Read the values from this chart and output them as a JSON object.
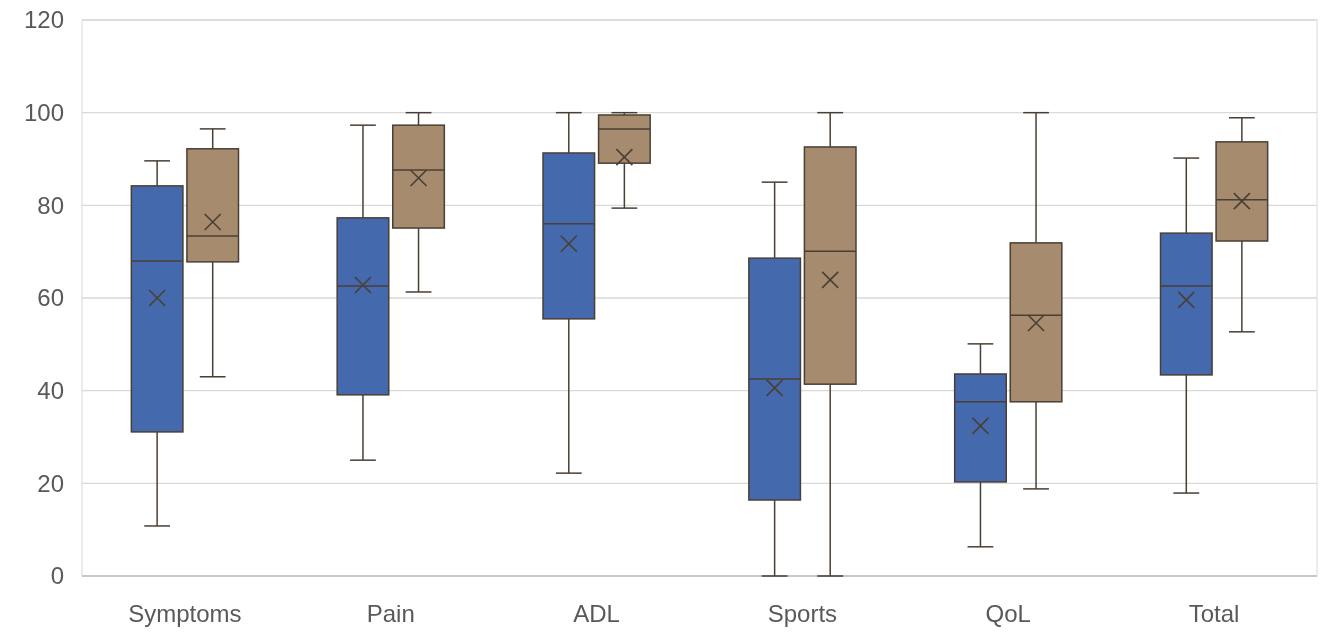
{
  "chart_data": {
    "type": "box",
    "categories": [
      "Symptoms",
      "Pain",
      "ADL",
      "Sports",
      "QoL",
      "Total"
    ],
    "ylim": [
      0,
      120
    ],
    "yticks": [
      0,
      20,
      40,
      60,
      80,
      100,
      120
    ],
    "grid": "y",
    "marker": "cross",
    "series": [
      {
        "color": "#4569ad",
        "boxes": [
          {
            "low": 10.8,
            "q1": 31.1,
            "median": 68,
            "q3": 84.2,
            "high": 89.6,
            "mean": 60
          },
          {
            "low": 25,
            "q1": 39.1,
            "median": 62.6,
            "q3": 77.3,
            "high": 97.3,
            "mean": 62.8
          },
          {
            "low": 22.2,
            "q1": 55.5,
            "median": 76,
            "q3": 91.3,
            "high": 100,
            "mean": 71.7
          },
          {
            "low": 0,
            "q1": 16.4,
            "median": 42.5,
            "q3": 68.6,
            "high": 85,
            "mean": 40.6
          },
          {
            "low": 6.3,
            "q1": 20.3,
            "median": 37.6,
            "q3": 43.6,
            "high": 50.1,
            "mean": 32.4
          },
          {
            "low": 17.9,
            "q1": 43.4,
            "median": 62.6,
            "q3": 74,
            "high": 90.2,
            "mean": 59.6
          }
        ]
      },
      {
        "color": "#a68b6f",
        "boxes": [
          {
            "low": 43,
            "q1": 67.8,
            "median": 73.4,
            "q3": 92.2,
            "high": 96.5,
            "mean": 76.4
          },
          {
            "low": 61.3,
            "q1": 75.1,
            "median": 87.6,
            "q3": 97.3,
            "high": 100,
            "mean": 85.9
          },
          {
            "low": 79.4,
            "q1": 89.1,
            "median": 96.5,
            "q3": 99.5,
            "high": 100,
            "mean": 90.4
          },
          {
            "low": 0,
            "q1": 41.4,
            "median": 70.1,
            "q3": 92.6,
            "high": 100,
            "mean": 63.9
          },
          {
            "low": 18.8,
            "q1": 37.6,
            "median": 56.3,
            "q3": 71.9,
            "high": 100,
            "mean": 54.6
          },
          {
            "low": 52.7,
            "q1": 72.3,
            "median": 81.2,
            "q3": 93.7,
            "high": 98.9,
            "mean": 80.9
          }
        ]
      }
    ]
  }
}
